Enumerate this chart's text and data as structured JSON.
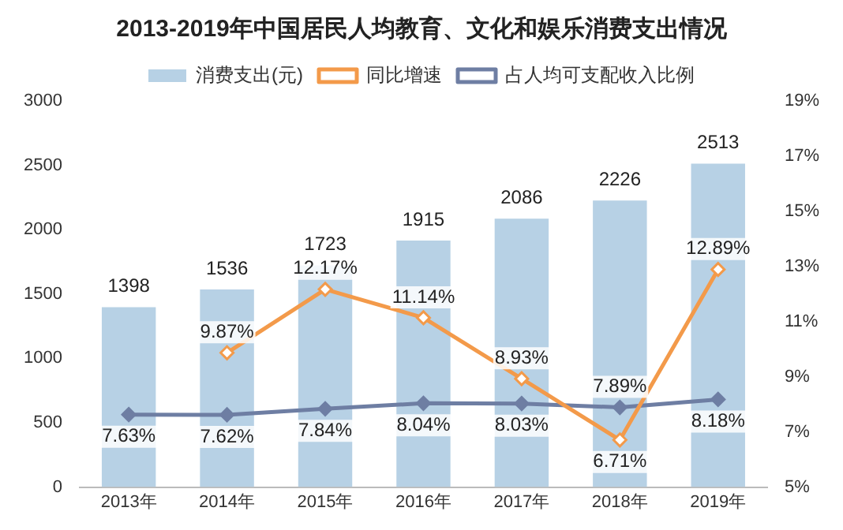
{
  "chart_data": {
    "type": "bar",
    "title": "2013-2019年中国居民人均教育、文化和娱乐消费支出情况",
    "categories": [
      "2013年",
      "2014年",
      "2015年",
      "2016年",
      "2017年",
      "2018年",
      "2019年"
    ],
    "series": [
      {
        "name": "消费支出(元)",
        "color": "#b7d1e5",
        "values": [
          1398,
          1536,
          1723,
          1915,
          2086,
          2226,
          2513
        ],
        "value_labels": [
          "1398",
          "1536",
          "1723",
          "1915",
          "2086",
          "2226",
          "2513"
        ]
      },
      {
        "name": "同比增速",
        "type": "line",
        "axis": "y2",
        "color": "#f39a4a",
        "values": [
          null,
          9.87,
          12.17,
          11.14,
          8.93,
          6.71,
          12.89
        ],
        "value_labels": [
          null,
          "9.87%",
          "12.17%",
          "11.14%",
          "8.93%",
          "6.71%",
          "12.89%"
        ]
      },
      {
        "name": "占人均可支配收入比例",
        "type": "line",
        "axis": "y2",
        "color": "#6e7ea3",
        "values": [
          7.63,
          7.62,
          7.84,
          8.04,
          8.03,
          7.89,
          8.18
        ],
        "value_labels": [
          "7.63%",
          "7.62%",
          "7.84%",
          "8.04%",
          "8.03%",
          "7.89%",
          "8.18%"
        ]
      }
    ],
    "ylim": [
      0,
      3000
    ],
    "yticks": [
      0,
      500,
      1000,
      1500,
      2000,
      2500,
      3000
    ],
    "y2lim": [
      5,
      19
    ],
    "y2ticks": [
      {
        "value": 5,
        "label": "5%"
      },
      {
        "value": 7,
        "label": "7%"
      },
      {
        "value": 9,
        "label": "9%"
      },
      {
        "value": 11,
        "label": "11%"
      },
      {
        "value": 13,
        "label": "13%"
      },
      {
        "value": 15,
        "label": "15%"
      },
      {
        "value": 17,
        "label": "17%"
      },
      {
        "value": 19,
        "label": "19%"
      }
    ],
    "legend": "top",
    "marker": "diamond",
    "grid": false
  }
}
